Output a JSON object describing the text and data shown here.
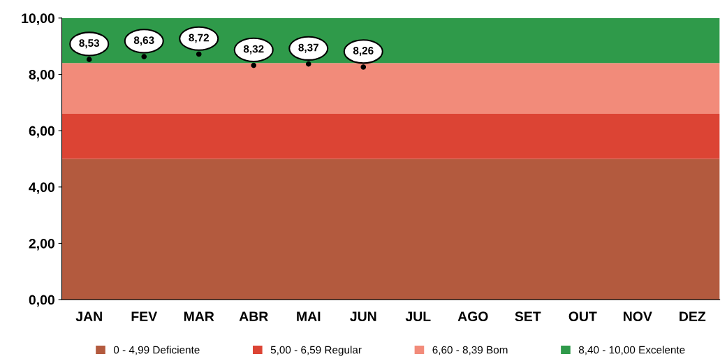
{
  "chart_data": {
    "type": "scatter",
    "categories": [
      "JAN",
      "FEV",
      "MAR",
      "ABR",
      "MAI",
      "JUN",
      "JUL",
      "AGO",
      "SET",
      "OUT",
      "NOV",
      "DEZ"
    ],
    "series": [
      {
        "color": "#000000",
        "values": [
          8.53,
          8.63,
          8.72,
          8.32,
          8.37,
          8.26,
          null,
          null,
          null,
          null,
          null,
          null
        ],
        "value_labels": [
          "8,53",
          "8,63",
          "8,72",
          "8,32",
          "8,37",
          "8,26",
          null,
          null,
          null,
          null,
          null,
          null
        ]
      }
    ],
    "marker": "circle",
    "bands": [
      {
        "axis": "y",
        "from": 0,
        "to": 5,
        "label": "0 - 4,99 Deficiente",
        "color": "#b35a3e"
      },
      {
        "axis": "y",
        "from": 5,
        "to": 6.6,
        "label": "5,00 - 6,59 Regular",
        "color": "#dc4434"
      },
      {
        "axis": "y",
        "from": 6.6,
        "to": 8.4,
        "label": "6,60 - 8,39 Bom",
        "color": "#f28b7a"
      },
      {
        "axis": "y",
        "from": 8.4,
        "to": 10,
        "label": "8,40 - 10,00 Excelente",
        "color": "#2f9a4a"
      }
    ],
    "ylim": [
      0,
      10
    ],
    "yticks": [
      {
        "value": 0,
        "label": "0,00"
      },
      {
        "value": 2,
        "label": "2,00"
      },
      {
        "value": 4,
        "label": "4,00"
      },
      {
        "value": 6,
        "label": "6,00"
      },
      {
        "value": 8,
        "label": "8,00"
      },
      {
        "value": 10,
        "label": "10,00"
      }
    ],
    "legend": "bottom",
    "grid": false
  }
}
